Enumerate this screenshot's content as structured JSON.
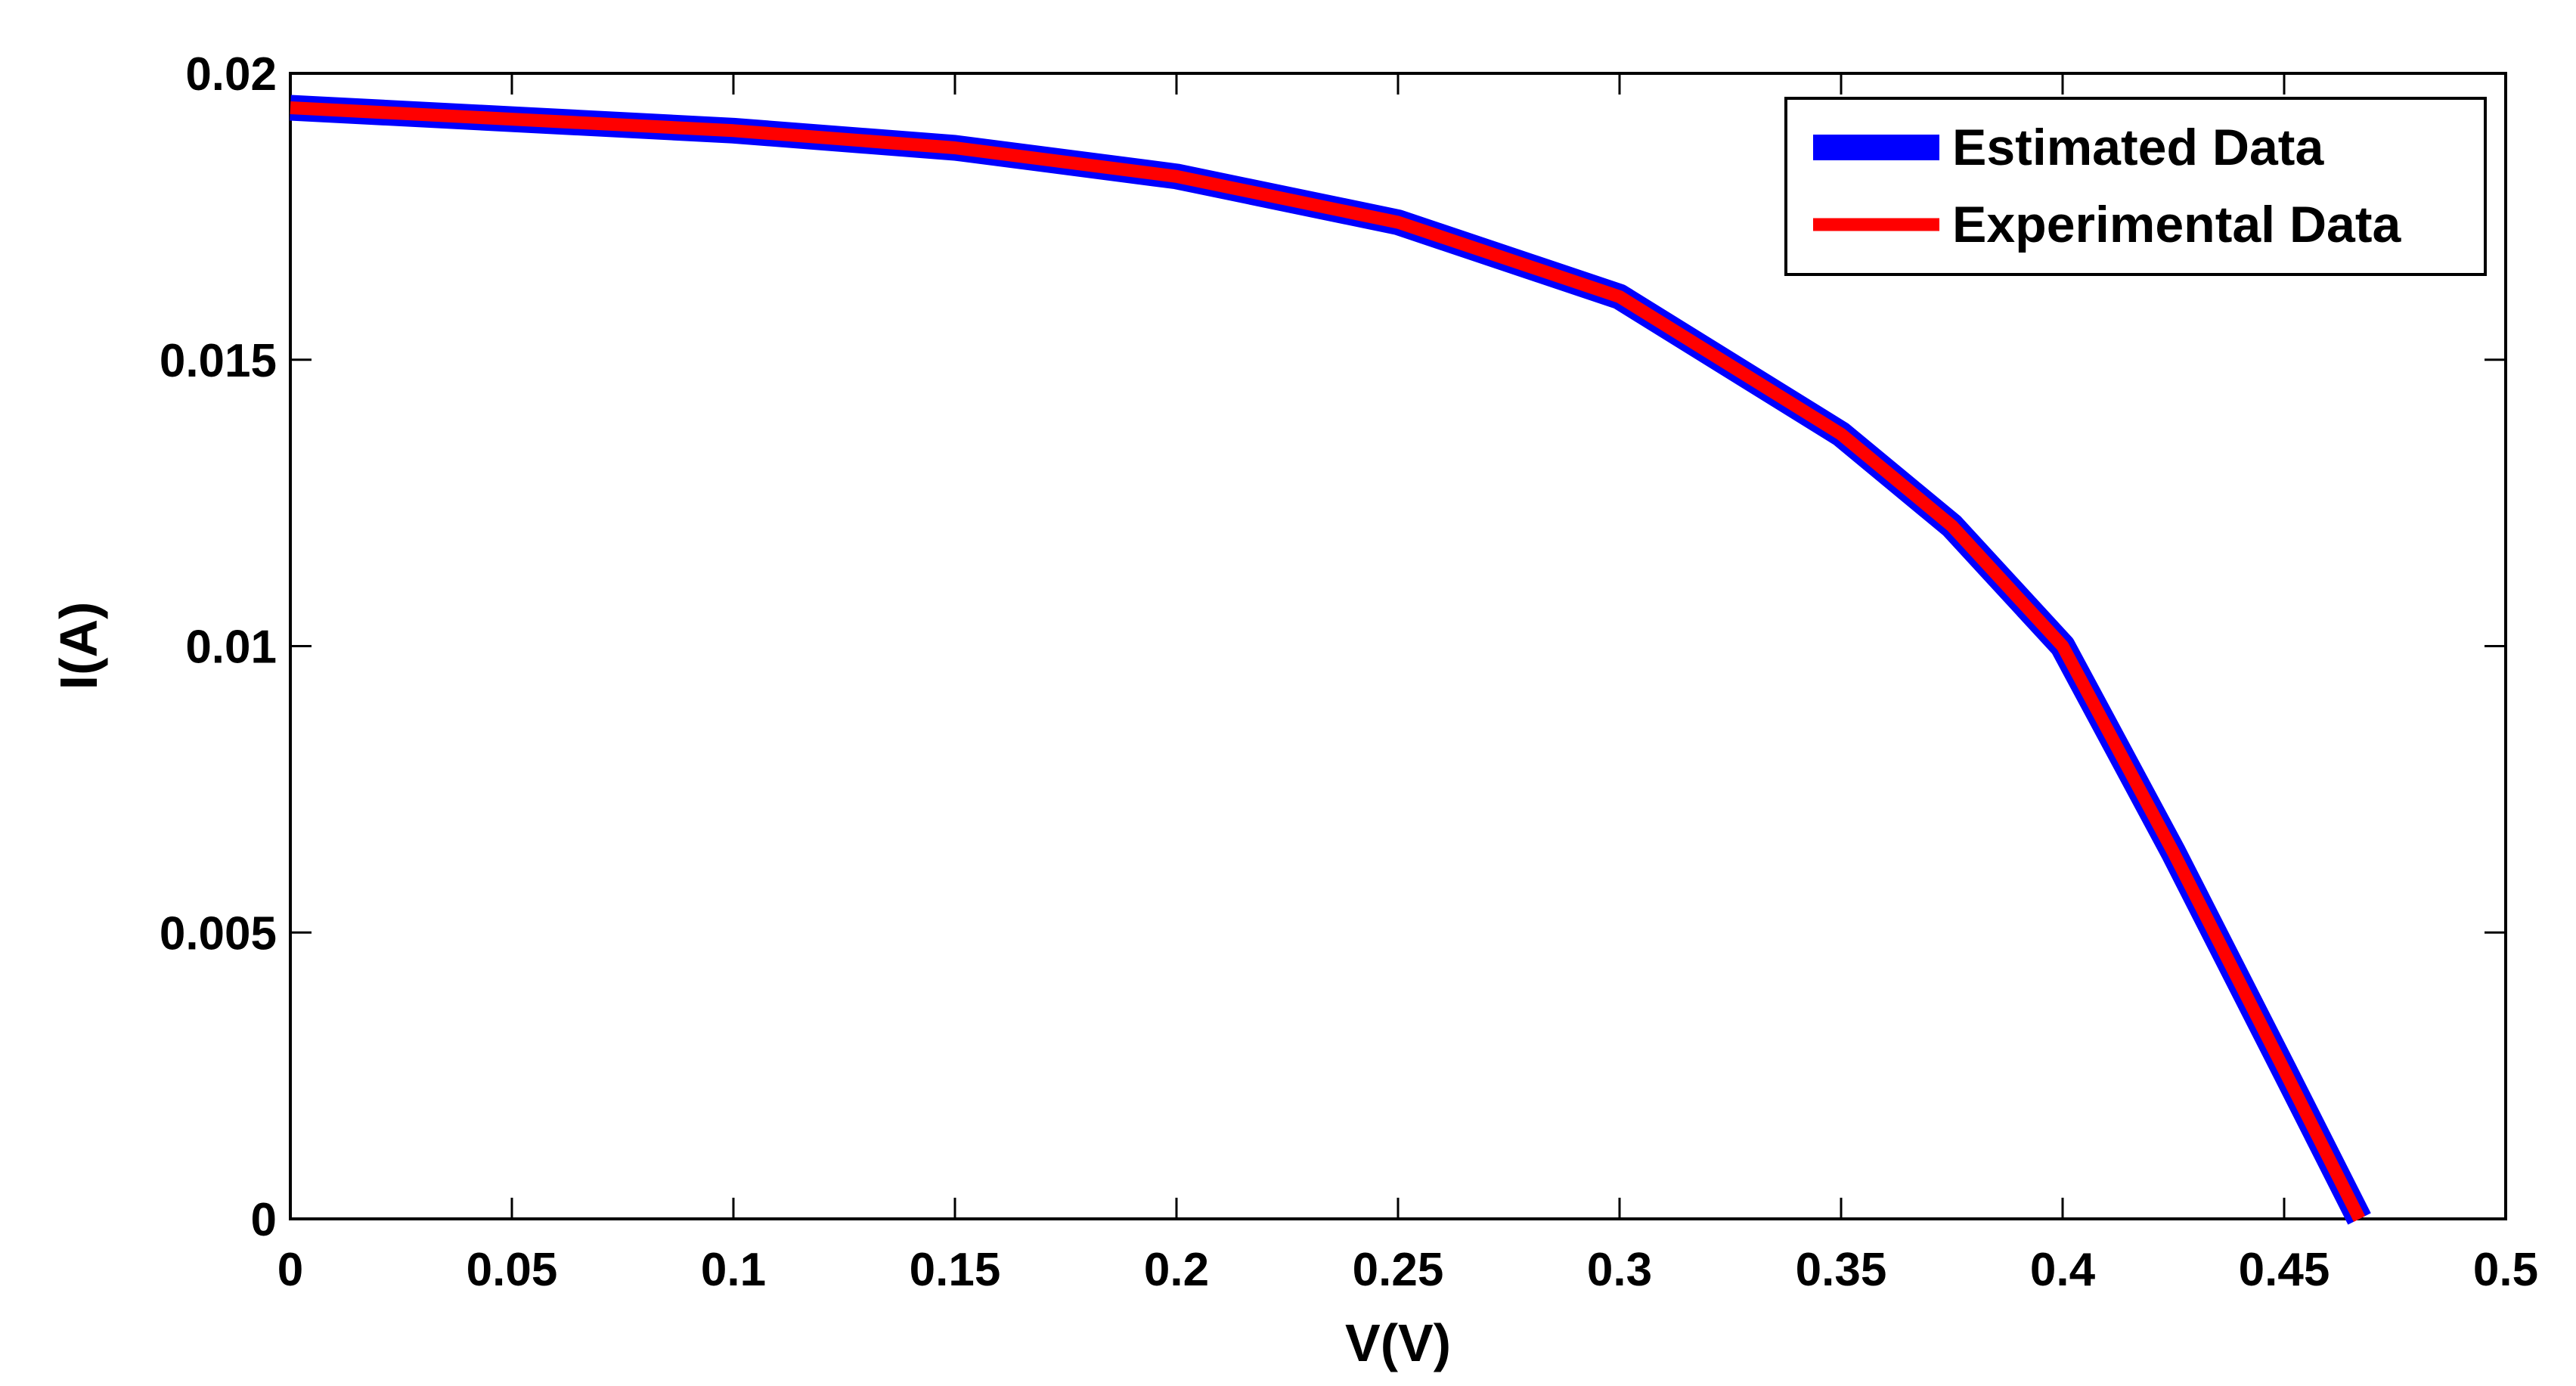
{
  "chart_data": {
    "type": "line",
    "title": "",
    "xlabel": "V(V)",
    "ylabel": "I(A)",
    "xlim": [
      0,
      0.5
    ],
    "ylim": [
      0,
      0.02
    ],
    "xticks": [
      "0",
      "0.05",
      "0.1",
      "0.15",
      "0.2",
      "0.25",
      "0.3",
      "0.35",
      "0.4",
      "0.45",
      "0.5"
    ],
    "yticks": [
      "0",
      "0.005",
      "0.01",
      "0.015",
      "0.02"
    ],
    "grid": false,
    "legend_position": "top-right",
    "series": [
      {
        "name": "Estimated Data",
        "color": "#0000ff",
        "x": [
          0,
          0.05,
          0.1,
          0.15,
          0.2,
          0.25,
          0.3,
          0.35,
          0.375,
          0.4,
          0.425,
          0.45,
          0.467
        ],
        "y": [
          0.0194,
          0.0192,
          0.019,
          0.0187,
          0.0182,
          0.0174,
          0.0161,
          0.0137,
          0.0121,
          0.01,
          0.0064,
          0.0026,
          0.0
        ]
      },
      {
        "name": "Experimental Data",
        "color": "#ff0000",
        "x": [
          0,
          0.05,
          0.1,
          0.15,
          0.2,
          0.25,
          0.3,
          0.35,
          0.375,
          0.4,
          0.425,
          0.45,
          0.467
        ],
        "y": [
          0.0194,
          0.0192,
          0.019,
          0.0187,
          0.0182,
          0.0174,
          0.0161,
          0.0137,
          0.0121,
          0.01,
          0.0064,
          0.0026,
          0.0
        ]
      }
    ]
  }
}
